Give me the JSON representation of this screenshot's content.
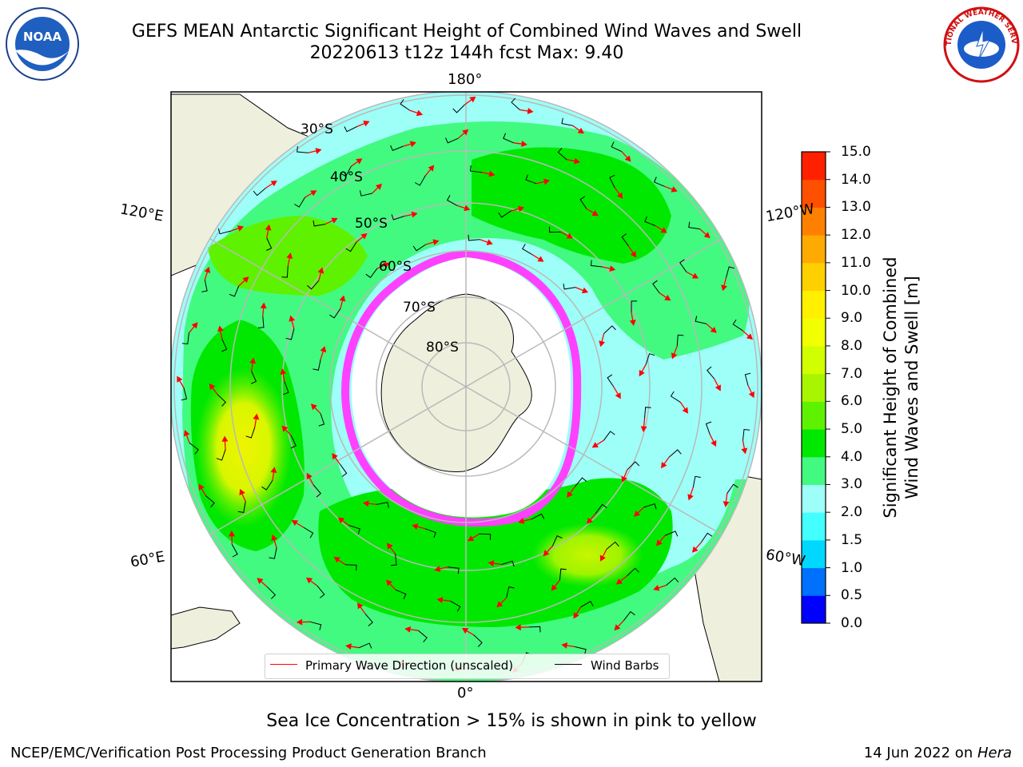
{
  "title_line1": "GEFS MEAN Antarctic Significant Height of Combined Wind Waves and Swell",
  "title_line2": "20220613 t12z 144h fcst   Max: 9.40",
  "logos": {
    "left": "NOAA",
    "right": "NATIONAL WEATHER SERVICE"
  },
  "longitude_labels": {
    "top": "180°",
    "bottom": "0°",
    "upper_left": "120°E",
    "upper_right": "120°W",
    "lower_left": "60°E",
    "lower_right": "60°W"
  },
  "latitude_labels": [
    "30°S",
    "40°S",
    "50°S",
    "60°S",
    "70°S",
    "80°S"
  ],
  "colorbar": {
    "label": "Significant Height of Combined\nWind Waves and Swell [m]",
    "ticks": [
      "15.0",
      "14.0",
      "13.0",
      "12.0",
      "11.0",
      "10.0",
      "9.0",
      "8.0",
      "7.0",
      "6.0",
      "5.0",
      "4.0",
      "3.0",
      "2.0",
      "1.5",
      "1.0",
      "0.5",
      "0.0"
    ],
    "colors": [
      "#0000ff",
      "#0070ff",
      "#00d8ff",
      "#43ffff",
      "#9efff8",
      "#42fa80",
      "#00e800",
      "#5ef200",
      "#a8f500",
      "#d2ff00",
      "#f2ff00",
      "#fff000",
      "#ffd000",
      "#ffaa00",
      "#ff8000",
      "#ff5000",
      "#ff2000"
    ]
  },
  "legend": {
    "wave_label": "Primary Wave Direction (unscaled)",
    "wave_color": "#ff0000",
    "wind_label": "Wind Barbs",
    "wind_color": "#000000"
  },
  "note": "Sea Ice Concentration > 15% is shown in pink to yellow",
  "footer": {
    "left": "NCEP/EMC/Verification Post Processing Product Generation Branch",
    "right_prefix": "14 Jun 2022 on ",
    "right_host": "Hera"
  }
}
